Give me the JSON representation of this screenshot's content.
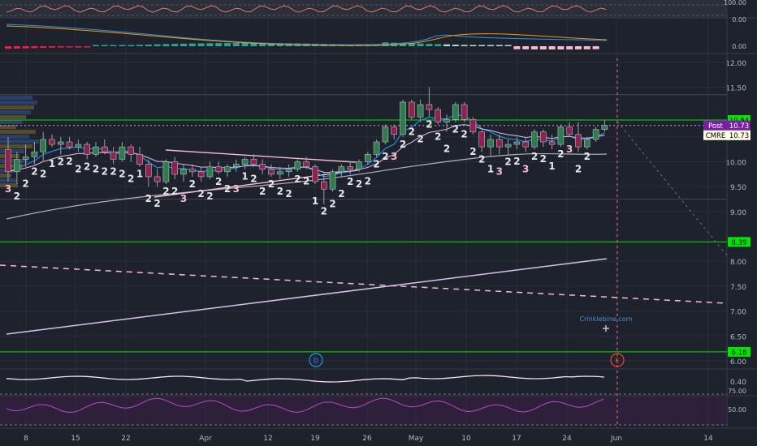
{
  "theme": {
    "background": "#1e222d",
    "grid": "#2a2e39",
    "separator": "#363a45",
    "axis_text": "#b2b5be",
    "up": "#26a69a",
    "down": "#c2185b",
    "up_candle": "#2e7d4f",
    "down_candle": "#8e244d",
    "neon_green": "#00e600",
    "pink": "#f8bbd0",
    "lavender": "#d1c4e9",
    "purple": "#7b1fa2",
    "blue": "#2196f3",
    "gray_ma": "#b0b0b8"
  },
  "chart_data": {
    "type": "candlestick",
    "symbol": "CMRE",
    "x_tick_labels": [
      "8",
      "15",
      "22",
      "Apr",
      "12",
      "19",
      "26",
      "May",
      "10",
      "17",
      "24",
      "Jun",
      "14"
    ],
    "y_axis": {
      "ticks": [
        12.0,
        11.5,
        10.5,
        10.0,
        9.5,
        9.0,
        8.0,
        7.5,
        7.0,
        6.5,
        6.0
      ],
      "tick_labels": [
        "12.00",
        "11.50",
        "10.50",
        "10.00",
        "9.50",
        "9.00",
        "8.00",
        "7.50",
        "7.00",
        "6.50",
        "6.00"
      ],
      "range": [
        5.8,
        12.2
      ]
    },
    "price_labels": [
      {
        "text": "10.84",
        "value": 10.84,
        "style": "green"
      },
      {
        "text": "10.73",
        "prefix": "Post",
        "value": 10.73,
        "style": "purple"
      },
      {
        "text": "10.73",
        "prefix": "CMRE",
        "value": 10.73,
        "style": "light"
      },
      {
        "text": "8.39",
        "value": 8.39,
        "style": "green"
      },
      {
        "text": "6.18",
        "value": 6.18,
        "style": "green"
      }
    ],
    "horizontal_lines": [
      {
        "value": 10.84,
        "color": "#00e600"
      },
      {
        "value": 8.39,
        "color": "#00e600"
      },
      {
        "value": 6.18,
        "color": "#00e600"
      },
      {
        "value": 11.35,
        "color": "#434651"
      },
      {
        "value": 9.25,
        "color": "#434651"
      }
    ],
    "candles": [
      [
        10.25,
        10.5,
        9.6,
        9.8
      ],
      [
        9.8,
        10.2,
        9.55,
        10.05
      ],
      [
        10.05,
        10.35,
        9.9,
        10.1
      ],
      [
        10.1,
        10.4,
        9.95,
        10.2
      ],
      [
        10.2,
        10.6,
        10.0,
        10.45
      ],
      [
        10.45,
        10.55,
        10.3,
        10.35
      ],
      [
        10.35,
        10.5,
        10.15,
        10.4
      ],
      [
        10.4,
        10.5,
        10.25,
        10.3
      ],
      [
        10.3,
        10.45,
        10.2,
        10.35
      ],
      [
        10.35,
        10.4,
        10.05,
        10.15
      ],
      [
        10.15,
        10.4,
        10.1,
        10.3
      ],
      [
        10.3,
        10.45,
        10.15,
        10.2
      ],
      [
        10.2,
        10.3,
        9.95,
        10.05
      ],
      [
        10.05,
        10.4,
        10.0,
        10.3
      ],
      [
        10.3,
        10.35,
        10.0,
        10.15
      ],
      [
        10.15,
        10.3,
        9.9,
        9.95
      ],
      [
        9.95,
        10.05,
        9.5,
        9.7
      ],
      [
        9.7,
        9.85,
        9.5,
        9.6
      ],
      [
        9.6,
        10.05,
        9.55,
        10.0
      ],
      [
        10.0,
        10.1,
        9.65,
        9.75
      ],
      [
        9.75,
        9.95,
        9.6,
        9.85
      ],
      [
        9.85,
        9.95,
        9.7,
        9.8
      ],
      [
        9.8,
        9.9,
        9.6,
        9.7
      ],
      [
        9.7,
        10.0,
        9.65,
        9.9
      ],
      [
        9.9,
        10.0,
        9.75,
        9.8
      ],
      [
        9.8,
        9.95,
        9.7,
        9.9
      ],
      [
        9.9,
        10.05,
        9.8,
        9.95
      ],
      [
        9.95,
        10.1,
        9.85,
        10.05
      ],
      [
        10.05,
        10.15,
        9.9,
        9.95
      ],
      [
        9.95,
        10.05,
        9.75,
        9.85
      ],
      [
        9.85,
        9.95,
        9.7,
        9.75
      ],
      [
        9.75,
        9.9,
        9.65,
        9.8
      ],
      [
        9.8,
        9.95,
        9.7,
        9.85
      ],
      [
        9.85,
        10.05,
        9.8,
        10.0
      ],
      [
        10.0,
        10.1,
        9.85,
        9.9
      ],
      [
        9.9,
        9.95,
        9.55,
        9.6
      ],
      [
        9.6,
        9.8,
        9.15,
        9.45
      ],
      [
        9.45,
        9.85,
        9.4,
        9.8
      ],
      [
        9.8,
        9.95,
        9.7,
        9.9
      ],
      [
        9.9,
        10.0,
        9.75,
        9.85
      ],
      [
        9.85,
        10.05,
        9.8,
        10.0
      ],
      [
        10.0,
        10.2,
        9.95,
        10.15
      ],
      [
        10.15,
        10.45,
        10.1,
        10.4
      ],
      [
        10.4,
        10.75,
        10.35,
        10.7
      ],
      [
        10.7,
        10.75,
        10.45,
        10.55
      ],
      [
        10.55,
        11.25,
        10.5,
        11.2
      ],
      [
        11.2,
        11.25,
        10.85,
        10.9
      ],
      [
        10.9,
        11.25,
        10.8,
        11.15
      ],
      [
        11.15,
        11.5,
        10.9,
        11.05
      ],
      [
        11.05,
        11.1,
        10.75,
        10.8
      ],
      [
        10.8,
        10.95,
        10.6,
        10.85
      ],
      [
        10.85,
        11.2,
        10.8,
        11.15
      ],
      [
        11.15,
        11.2,
        10.8,
        10.85
      ],
      [
        10.85,
        10.9,
        10.55,
        10.6
      ],
      [
        10.6,
        10.65,
        10.2,
        10.3
      ],
      [
        10.3,
        10.55,
        10.1,
        10.45
      ],
      [
        10.45,
        10.55,
        10.15,
        10.3
      ],
      [
        10.3,
        10.45,
        10.15,
        10.35
      ],
      [
        10.35,
        10.5,
        10.25,
        10.4
      ],
      [
        10.4,
        10.5,
        10.2,
        10.3
      ],
      [
        10.3,
        10.65,
        10.25,
        10.6
      ],
      [
        10.6,
        10.65,
        10.3,
        10.4
      ],
      [
        10.4,
        10.55,
        10.25,
        10.35
      ],
      [
        10.35,
        10.75,
        10.3,
        10.7
      ],
      [
        10.7,
        10.8,
        10.5,
        10.55
      ],
      [
        10.55,
        10.8,
        10.2,
        10.3
      ],
      [
        10.3,
        10.5,
        10.25,
        10.45
      ],
      [
        10.45,
        10.7,
        10.4,
        10.65
      ],
      [
        10.65,
        10.85,
        10.6,
        10.73
      ]
    ],
    "sequence_counts": [
      "3",
      "2",
      "2",
      "2",
      "2",
      "1",
      "2",
      "2",
      "2",
      "2",
      "2",
      "2",
      "2",
      "2",
      "2",
      "1",
      "2",
      "2",
      "2",
      "2",
      "3",
      "2",
      "2",
      "2",
      "2",
      "2",
      "3",
      "1",
      "2",
      "2",
      "2",
      "2",
      "2",
      "2",
      "2",
      "1",
      "2",
      "2",
      "2",
      "2",
      "2",
      "2",
      "2",
      "2",
      "3",
      "2",
      "2",
      "2",
      "2",
      "2",
      "2",
      "2",
      "2",
      "2",
      "2",
      "1",
      "3",
      "2",
      "2",
      "3",
      "2",
      "2",
      "1",
      "2",
      "3",
      "2",
      "2"
    ],
    "indicator_labels": {
      "top_oscillator": [
        "100.00",
        "0.00"
      ],
      "macd": [
        "0.00"
      ],
      "lower_panel": [
        "0.40"
      ],
      "rsi": [
        "75.00",
        "50.00"
      ]
    },
    "event_markers": [
      {
        "letter": "D",
        "color": "#2196f3"
      },
      {
        "letter": "E",
        "color": "#f44336"
      }
    ],
    "watermark": "Crinklebine.com"
  }
}
